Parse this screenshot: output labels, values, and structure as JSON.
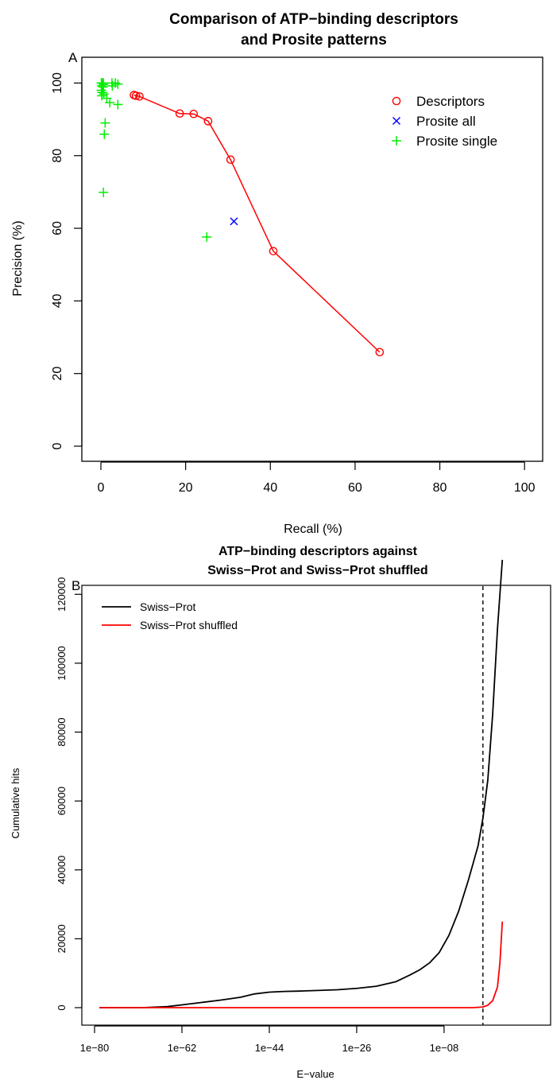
{
  "chart_data": [
    {
      "type": "scatter",
      "panel_label": "A",
      "title_lines": [
        "Comparison of ATP−binding descriptors",
        "and Prosite patterns"
      ],
      "xlabel": "Recall (%)",
      "ylabel": "Precision (%)",
      "xlim": [
        0,
        100
      ],
      "ylim": [
        0,
        100
      ],
      "x_ticks": [
        "0",
        "20",
        "40",
        "60",
        "80",
        "100"
      ],
      "y_ticks": [
        "0",
        "20",
        "40",
        "60",
        "80",
        "100"
      ],
      "legend_position": "top-right",
      "series": [
        {
          "name": "Descriptors",
          "marker": "circle",
          "connected": true,
          "color": "#ff0000",
          "points": [
            [
              7.8,
              96.7
            ],
            [
              8.3,
              96.5
            ],
            [
              9.1,
              96.3
            ],
            [
              18.6,
              91.6
            ],
            [
              21.9,
              91.5
            ],
            [
              25.3,
              89.5
            ],
            [
              30.6,
              78.9
            ],
            [
              40.7,
              53.7
            ],
            [
              65.8,
              25.9
            ]
          ]
        },
        {
          "name": "Prosite all",
          "marker": "x",
          "connected": false,
          "color": "#0000ff",
          "points": [
            [
              31.4,
              61.9
            ]
          ]
        },
        {
          "name": "Prosite single",
          "marker": "plus",
          "connected": false,
          "color": "#00ee00",
          "points": [
            [
              0.1,
              100
            ],
            [
              0.3,
              100
            ],
            [
              0.6,
              100
            ],
            [
              0.2,
              99.2
            ],
            [
              0.5,
              98.9
            ],
            [
              0.1,
              98.0
            ],
            [
              0.3,
              97.4
            ],
            [
              0.7,
              97.0
            ],
            [
              0.2,
              96.5
            ],
            [
              1.4,
              95.8
            ],
            [
              0.6,
              99.6
            ],
            [
              2.6,
              100
            ],
            [
              3.4,
              100
            ],
            [
              2.7,
              99.2
            ],
            [
              4.0,
              99.7
            ],
            [
              2.1,
              94.6
            ],
            [
              4.0,
              94.1
            ],
            [
              1.0,
              89.0
            ],
            [
              0.8,
              85.9
            ],
            [
              0.6,
              69.9
            ],
            [
              25.0,
              57.6
            ]
          ]
        }
      ]
    },
    {
      "type": "line",
      "panel_label": "B",
      "title_lines": [
        "ATP−binding descriptors against",
        "Swiss−Prot and Swiss−Prot shuffled"
      ],
      "xlabel": "E−value",
      "ylabel": "Cumulative hits",
      "x_scale": "log10",
      "xlim_log10": [
        -80,
        8
      ],
      "ylim": [
        0,
        130000
      ],
      "x_ticks": [
        "1e−80",
        "1e−62",
        "1e−44",
        "1e−26",
        "1e−08"
      ],
      "x_tick_log10": [
        -80,
        -62,
        -44,
        -26,
        -8
      ],
      "y_ticks": [
        "0",
        "20000",
        "40000",
        "60000",
        "80000",
        "100000",
        "120000"
      ],
      "y_tick_values": [
        0,
        20000,
        40000,
        60000,
        80000,
        100000,
        120000
      ],
      "vline_log10": 0,
      "legend_position": "top-left",
      "series": [
        {
          "name": "Swiss−Prot",
          "color": "#000000",
          "x_log10": [
            -79,
            -70,
            -65,
            -62,
            -58,
            -54,
            -50,
            -47,
            -44,
            -41,
            -38,
            -34,
            -30,
            -26,
            -22,
            -18,
            -15,
            -13,
            -11,
            -9,
            -7,
            -5,
            -3,
            -1,
            0,
            1,
            2,
            3,
            4
          ],
          "y": [
            0,
            0,
            300,
            800,
            1500,
            2200,
            3000,
            4000,
            4500,
            4700,
            4800,
            5000,
            5200,
            5600,
            6200,
            7500,
            9500,
            11000,
            13000,
            16000,
            21000,
            28000,
            37000,
            47000,
            55000,
            66000,
            85000,
            110000,
            130000
          ]
        },
        {
          "name": "Swiss−Prot shuffled",
          "color": "#ff0000",
          "x_log10": [
            -79,
            -60,
            -40,
            -20,
            -10,
            -5,
            -2,
            0,
            1,
            2,
            3,
            3.5,
            4
          ],
          "y": [
            0,
            0,
            0,
            0,
            0,
            0,
            0,
            200,
            700,
            2000,
            6000,
            13000,
            25000
          ]
        }
      ]
    }
  ]
}
